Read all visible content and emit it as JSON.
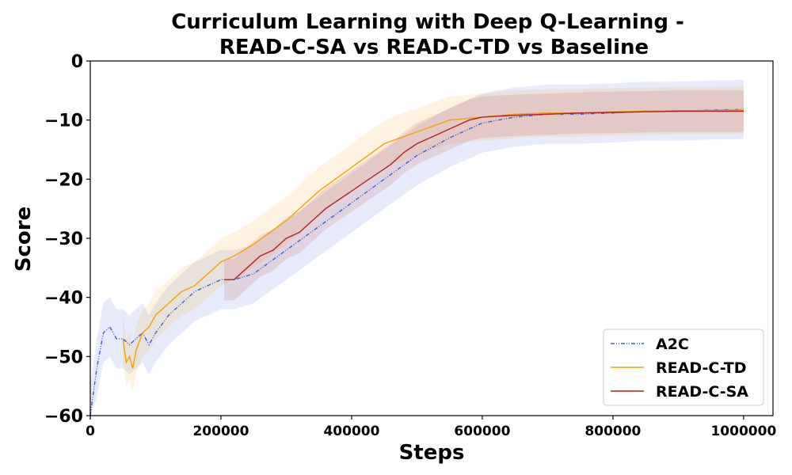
{
  "chart_data": {
    "type": "line",
    "title_line1": "Curriculum Learning with Deep Q-Learning -",
    "title_line2": "READ-C-SA vs READ-C-TD vs Baseline",
    "xlabel": "Steps",
    "ylabel": "Score",
    "xlim": [
      0,
      1045000
    ],
    "ylim": [
      -60,
      0
    ],
    "xticks": [
      0,
      200000,
      400000,
      600000,
      800000,
      1000000
    ],
    "xtick_labels": [
      "0",
      "200000",
      "400000",
      "600000",
      "800000",
      "1000000"
    ],
    "yticks": [
      0,
      -10,
      -20,
      -30,
      -40,
      -50,
      -60
    ],
    "ytick_labels": [
      "0",
      "−10",
      "−20",
      "−30",
      "−40",
      "−50",
      "−60"
    ],
    "grid": false,
    "legend_position": "lower-right",
    "series": [
      {
        "name": "A2C",
        "color": "#3b5bdb",
        "linestyle": "dash-dot-dot",
        "x": [
          0,
          10000,
          20000,
          30000,
          40000,
          50000,
          60000,
          70000,
          80000,
          90000,
          100000,
          120000,
          140000,
          160000,
          180000,
          200000,
          220000,
          250000,
          300000,
          350000,
          400000,
          450000,
          500000,
          550000,
          600000,
          650000,
          700000,
          750000,
          800000,
          850000,
          900000,
          950000,
          1000000
        ],
        "y": [
          -60,
          -52,
          -46,
          -45,
          -47,
          -47,
          -48,
          -47,
          -46,
          -48,
          -46,
          -43,
          -41,
          -39,
          -38,
          -37,
          -37,
          -36,
          -32,
          -28,
          -24,
          -20,
          -16,
          -13,
          -10.5,
          -9.5,
          -9,
          -9,
          -8.8,
          -8.5,
          -8.5,
          -8.3,
          -8.2
        ],
        "band": 5
      },
      {
        "name": "READ-C-TD",
        "color": "#f5a000",
        "linestyle": "solid",
        "x": [
          50000,
          55000,
          60000,
          65000,
          70000,
          80000,
          90000,
          100000,
          120000,
          140000,
          160000,
          180000,
          200000,
          220000,
          250000,
          300000,
          350000,
          400000,
          450000,
          500000,
          550000,
          600000,
          650000,
          700000,
          750000,
          800000,
          850000,
          900000,
          950000,
          1000000
        ],
        "y": [
          -47,
          -51,
          -50,
          -52,
          -49,
          -46,
          -45,
          -43,
          -41,
          -39,
          -38,
          -36,
          -34,
          -33,
          -31,
          -27,
          -22,
          -18,
          -14,
          -12,
          -10,
          -9.5,
          -9,
          -8.8,
          -8.8,
          -8.6,
          -8.5,
          -8.4,
          -8.4,
          -8.3
        ],
        "band": 4
      },
      {
        "name": "READ-C-SA",
        "color": "#b22222",
        "linestyle": "solid",
        "x": [
          205000,
          220000,
          240000,
          260000,
          280000,
          300000,
          320000,
          340000,
          360000,
          380000,
          400000,
          420000,
          440000,
          460000,
          480000,
          500000,
          520000,
          550000,
          580000,
          600000,
          650000,
          700000,
          750000,
          800000,
          850000,
          900000,
          950000,
          1000000
        ],
        "y": [
          -37,
          -37,
          -35,
          -33,
          -32,
          -30,
          -29,
          -27,
          -25,
          -23.5,
          -22,
          -20.5,
          -19,
          -17.5,
          -15.5,
          -14,
          -13,
          -11.5,
          -10,
          -9.5,
          -9.2,
          -9,
          -8.8,
          -8.7,
          -8.6,
          -8.5,
          -8.5,
          -8.5
        ],
        "band": 3.5
      }
    ]
  }
}
